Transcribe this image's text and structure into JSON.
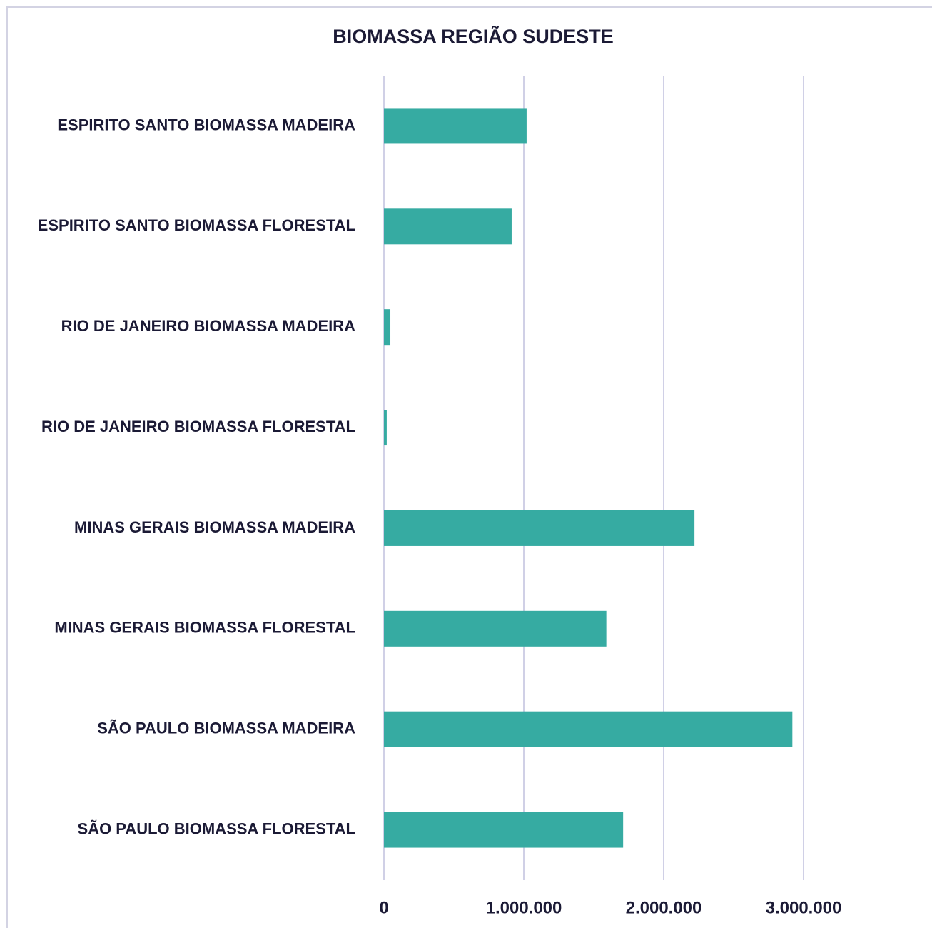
{
  "chart_data": {
    "type": "barh",
    "title": "BIOMASSA REGIÃO SUDESTE",
    "categories": [
      "ESPIRITO SANTO BIOMASSA MADEIRA",
      "ESPIRITO SANTO BIOMASSA FLORESTAL",
      "RIO DE JANEIRO BIOMASSA MADEIRA",
      "RIO DE JANEIRO BIOMASSA FLORESTAL",
      "MINAS GERAIS BIOMASSA MADEIRA",
      "MINAS GERAIS BIOMASSA FLORESTAL",
      "SÃO PAULO BIOMASSA MADEIRA",
      "SÃO PAULO BIOMASSA FLORESTAL"
    ],
    "values": [
      1020000,
      913000,
      46000,
      20000,
      2220000,
      1590000,
      2920000,
      1710000
    ],
    "color": "#36aba2",
    "xlim": [
      0,
      3000000
    ],
    "xticks": [
      0,
      {
        "value": 1000000,
        "label": "1.000.000"
      },
      {
        "value": 2000000,
        "label": "2.000.000"
      },
      {
        "value": 3000000,
        "label": "3.000.000"
      }
    ],
    "grid": true
  }
}
